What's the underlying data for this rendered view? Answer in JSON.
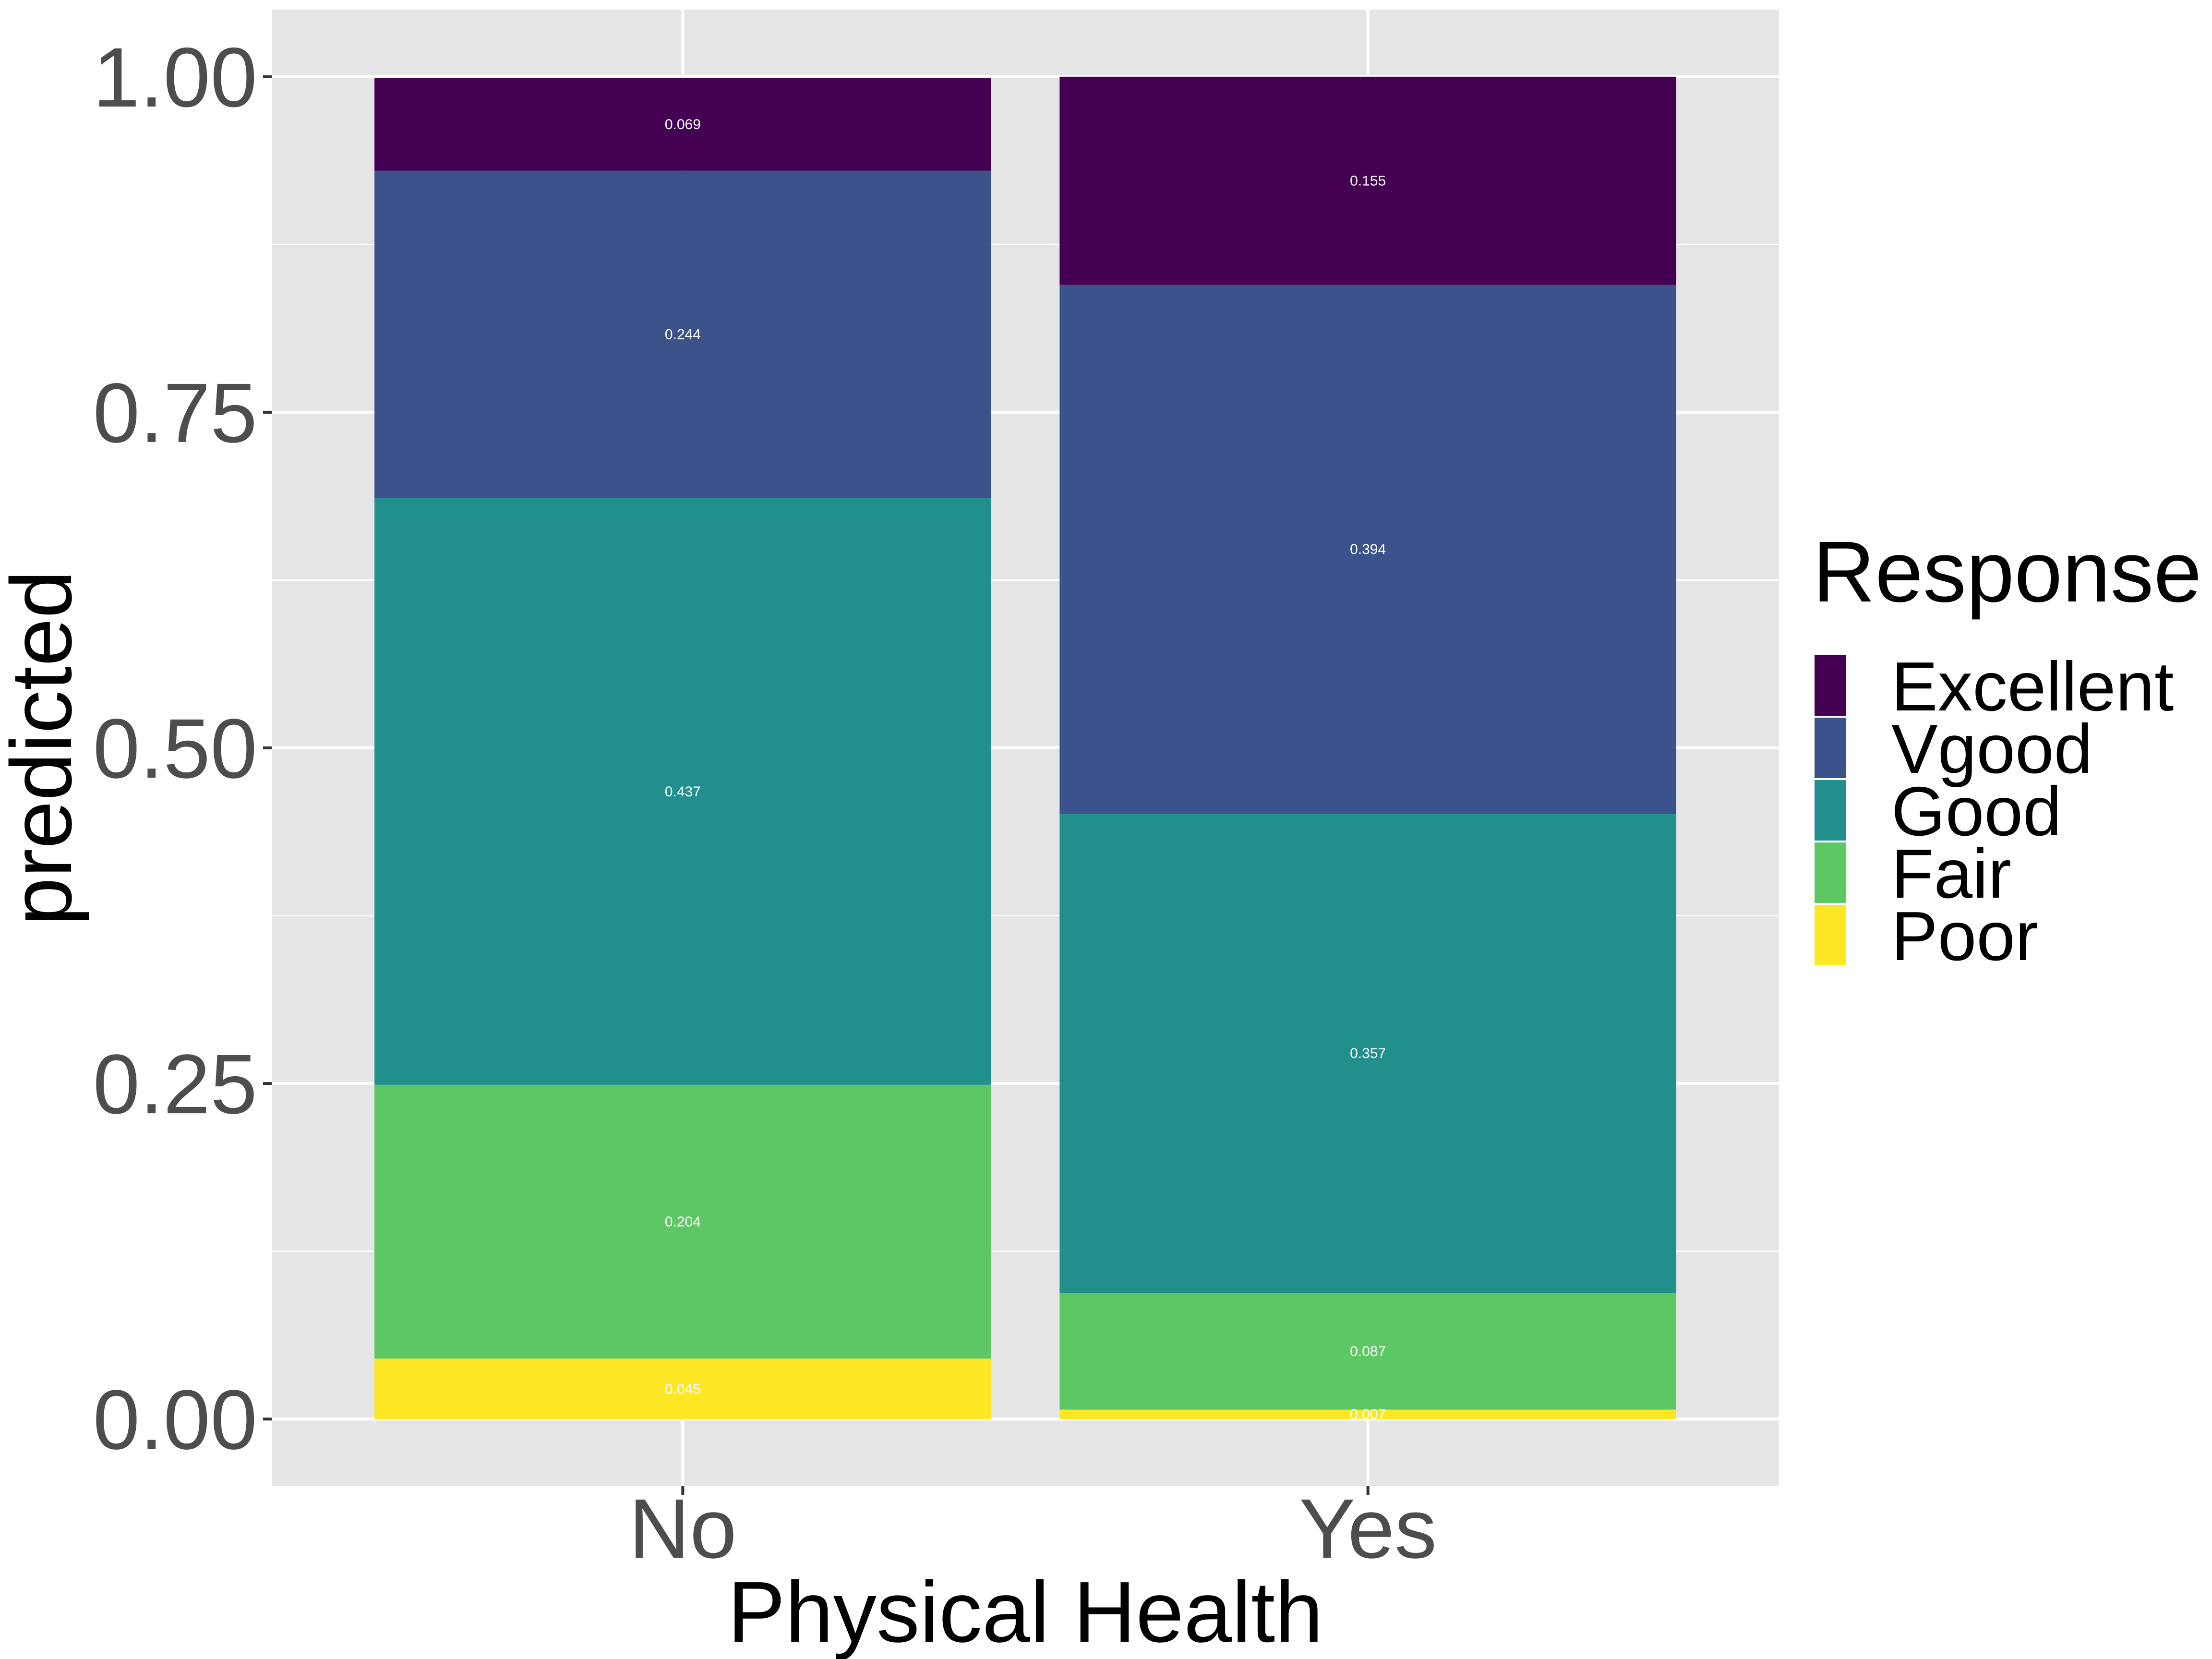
{
  "chart_data": {
    "type": "bar",
    "stacked": true,
    "categories": [
      "No",
      "Yes"
    ],
    "xlabel": "Physical Health",
    "ylabel": "predicted",
    "ylim": [
      -0.05,
      1.05
    ],
    "yticks": [
      0,
      0.25,
      0.5,
      0.75,
      1
    ],
    "ytick_labels": [
      "0.00",
      "0.25",
      "0.50",
      "0.75",
      "1.00"
    ],
    "grid": true,
    "legend_position": "right",
    "legend_title": "Response",
    "series": [
      {
        "name": "Poor",
        "color": "#FDE725",
        "values": [
          0.045,
          0.007
        ],
        "labels": [
          "0.045",
          "0.007"
        ]
      },
      {
        "name": "Fair",
        "color": "#5DC863",
        "values": [
          0.204,
          0.087
        ],
        "labels": [
          "0.204",
          "0.087"
        ]
      },
      {
        "name": "Good",
        "color": "#21908C",
        "values": [
          0.437,
          0.357
        ],
        "labels": [
          "0.437",
          "0.357"
        ]
      },
      {
        "name": "Vgood",
        "color": "#3B528B",
        "values": [
          0.244,
          0.394
        ],
        "labels": [
          "0.244",
          "0.394"
        ]
      },
      {
        "name": "Excellent",
        "color": "#440154",
        "values": [
          0.069,
          0.155
        ],
        "labels": [
          "0.069",
          "0.155"
        ]
      }
    ],
    "legend_order": [
      "Excellent",
      "Vgood",
      "Good",
      "Fair",
      "Poor"
    ]
  },
  "colors": {
    "panel_background": "#E5E5E5",
    "gridline": "#FFFFFF",
    "tick_text": "#4D4D4D"
  }
}
